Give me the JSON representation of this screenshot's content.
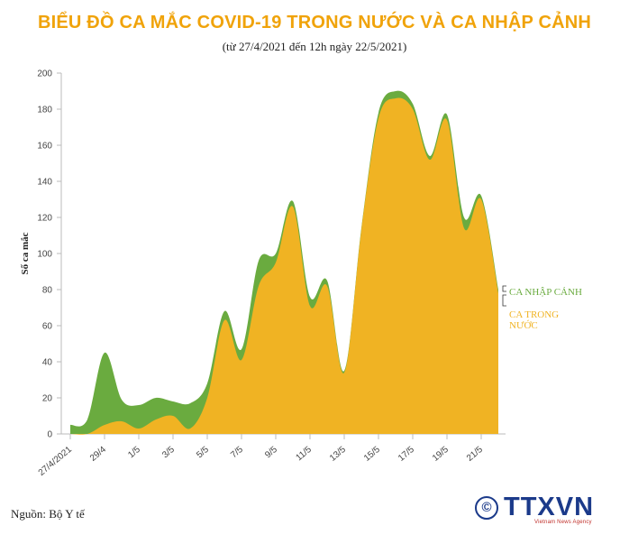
{
  "chart_data": {
    "type": "area",
    "title": "BIỂU ĐỒ CA MẮC COVID-19 TRONG NƯỚC VÀ CA NHẬP CẢNH",
    "subtitle": "(từ 27/4/2021 đến 12h ngày 22/5/2021)",
    "ylabel": "Số ca mắc",
    "xlabel": "",
    "ylim": [
      0,
      200
    ],
    "yticks": [
      0,
      20,
      40,
      60,
      80,
      100,
      120,
      140,
      160,
      180,
      200
    ],
    "stacked": true,
    "x": [
      "27/4/2021",
      "28/4",
      "29/4",
      "30/4",
      "1/5",
      "2/5",
      "3/5",
      "4/5",
      "5/5",
      "6/5",
      "7/5",
      "8/5",
      "9/5",
      "10/5",
      "11/5",
      "12/5",
      "13/5",
      "14/5",
      "15/5",
      "16/5",
      "17/5",
      "18/5",
      "19/5",
      "20/5",
      "21/5",
      "22/5"
    ],
    "xtick_labels": [
      "27/4/2021",
      "29/4",
      "1/5",
      "3/5",
      "5/5",
      "7/5",
      "9/5",
      "11/5",
      "13/5",
      "15/5",
      "17/5",
      "19/5",
      "21/5"
    ],
    "series": [
      {
        "name": "CA TRONG NƯỚC",
        "color": "#f0b323",
        "values": [
          0,
          0,
          5,
          7,
          3,
          8,
          10,
          3,
          20,
          63,
          41,
          82,
          95,
          126,
          71,
          82,
          34,
          113,
          175,
          186,
          180,
          152,
          174,
          114,
          130,
          78
        ]
      },
      {
        "name": "CA NHẬP CẢNH",
        "color": "#6aab3f",
        "values": [
          5,
          8,
          40,
          12,
          13,
          12,
          8,
          14,
          8,
          5,
          6,
          14,
          5,
          3,
          5,
          3,
          1,
          1,
          3,
          4,
          3,
          2,
          3,
          6,
          2,
          2
        ]
      }
    ],
    "legend_position": "right",
    "grid": false
  },
  "source": "Nguồn: Bộ Y tế",
  "logo": {
    "text": "TTXVN",
    "tagline": "Vietnam News Agency",
    "copyright": "©"
  },
  "colors": {
    "title": "#f0a30a",
    "domestic": "#f0b323",
    "imported": "#6aab3f",
    "logo": "#1b3a8a"
  }
}
